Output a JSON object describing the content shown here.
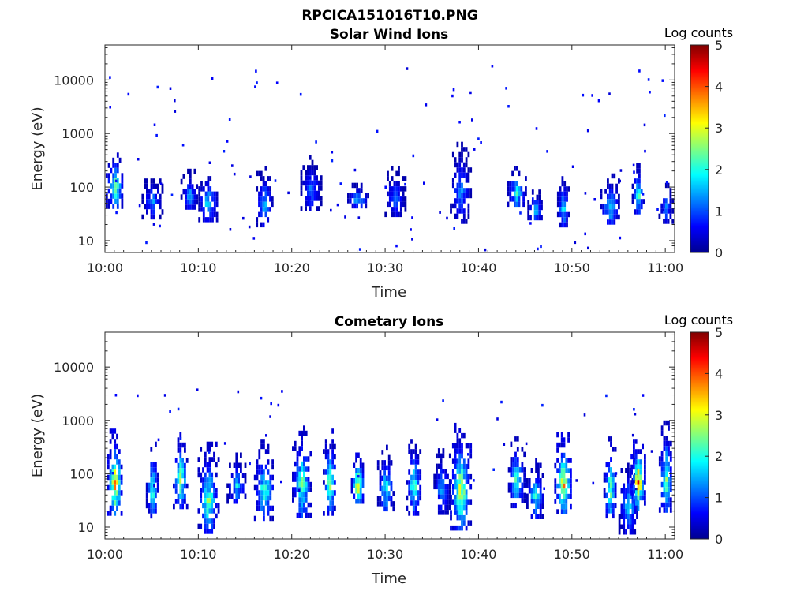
{
  "figure": {
    "title": "RPCICA151016T10.PNG"
  },
  "colors": {
    "colormap": [
      "#00008f",
      "#0000ff",
      "#0080ff",
      "#00ffff",
      "#80ff80",
      "#ffff00",
      "#ff8000",
      "#ff0000",
      "#800000"
    ],
    "axis": "#262626",
    "background": "#ffffff"
  },
  "chart_data": [
    {
      "type": "heatmap",
      "title": "Solar Wind Ions",
      "xlabel": "Time",
      "ylabel": "Energy (eV)",
      "y_scale": "log",
      "ylim": [
        6,
        45000
      ],
      "xlim": [
        "10:00",
        "11:01"
      ],
      "x_ticks": [
        "10:00",
        "10:10",
        "10:20",
        "10:30",
        "10:40",
        "10:50",
        "11:00"
      ],
      "y_ticks": [
        10,
        100,
        1000,
        10000
      ],
      "y_tick_labels": [
        "10",
        "100",
        "1000",
        "10000"
      ],
      "colorbar": {
        "label": "Log counts",
        "range": [
          0,
          5
        ],
        "ticks": [
          "0",
          "1",
          "2",
          "3",
          "4",
          "5"
        ]
      },
      "bursts": [
        {
          "time": "10:01",
          "e_low": 40,
          "e_high": 550,
          "peak": 2.3
        },
        {
          "time": "10:05",
          "e_low": 30,
          "e_high": 180,
          "peak": 1.2
        },
        {
          "time": "10:09",
          "e_low": 40,
          "e_high": 220,
          "peak": 1.3
        },
        {
          "time": "10:11",
          "e_low": 25,
          "e_high": 200,
          "peak": 1.8
        },
        {
          "time": "10:17",
          "e_low": 20,
          "e_high": 250,
          "peak": 1.5
        },
        {
          "time": "10:22",
          "e_low": 40,
          "e_high": 400,
          "peak": 1.2
        },
        {
          "time": "10:27",
          "e_low": 45,
          "e_high": 120,
          "peak": 1.6
        },
        {
          "time": "10:31",
          "e_low": 30,
          "e_high": 250,
          "peak": 1.1
        },
        {
          "time": "10:38",
          "e_low": 25,
          "e_high": 700,
          "peak": 1.3
        },
        {
          "time": "10:44",
          "e_low": 45,
          "e_high": 250,
          "peak": 1.9
        },
        {
          "time": "10:46",
          "e_low": 25,
          "e_high": 90,
          "peak": 1.6
        },
        {
          "time": "10:49",
          "e_low": 20,
          "e_high": 160,
          "peak": 1.8
        },
        {
          "time": "10:54",
          "e_low": 20,
          "e_high": 180,
          "peak": 1.7
        },
        {
          "time": "10:57",
          "e_low": 35,
          "e_high": 280,
          "peak": 2.1
        },
        {
          "time": "11:00",
          "e_low": 25,
          "e_high": 120,
          "peak": 1.2
        }
      ]
    },
    {
      "type": "heatmap",
      "title": "Cometary Ions",
      "xlabel": "Time",
      "ylabel": "Energy (eV)",
      "y_scale": "log",
      "ylim": [
        6,
        45000
      ],
      "xlim": [
        "10:00",
        "11:01"
      ],
      "x_ticks": [
        "10:00",
        "10:10",
        "10:20",
        "10:30",
        "10:40",
        "10:50",
        "11:00"
      ],
      "y_ticks": [
        10,
        100,
        1000,
        10000
      ],
      "y_tick_labels": [
        "10",
        "100",
        "1000",
        "10000"
      ],
      "colorbar": {
        "label": "Log counts",
        "range": [
          0,
          5
        ],
        "ticks": [
          "0",
          "1",
          "2",
          "3",
          "4",
          "5"
        ]
      },
      "bursts": [
        {
          "time": "10:01",
          "e_low": 18,
          "e_high": 700,
          "peak": 3.3
        },
        {
          "time": "10:05",
          "e_low": 18,
          "e_high": 400,
          "peak": 2.1
        },
        {
          "time": "10:08",
          "e_low": 25,
          "e_high": 600,
          "peak": 2.6
        },
        {
          "time": "10:11",
          "e_low": 8,
          "e_high": 400,
          "peak": 2.3
        },
        {
          "time": "10:14",
          "e_low": 30,
          "e_high": 250,
          "peak": 1.6
        },
        {
          "time": "10:17",
          "e_low": 15,
          "e_high": 450,
          "peak": 2.2
        },
        {
          "time": "10:21",
          "e_low": 15,
          "e_high": 800,
          "peak": 2.3
        },
        {
          "time": "10:24",
          "e_low": 20,
          "e_high": 700,
          "peak": 2.4
        },
        {
          "time": "10:27",
          "e_low": 30,
          "e_high": 250,
          "peak": 3.1
        },
        {
          "time": "10:30",
          "e_low": 20,
          "e_high": 350,
          "peak": 1.8
        },
        {
          "time": "10:33",
          "e_low": 20,
          "e_high": 450,
          "peak": 2.2
        },
        {
          "time": "10:36",
          "e_low": 20,
          "e_high": 300,
          "peak": 1.5
        },
        {
          "time": "10:38",
          "e_low": 10,
          "e_high": 900,
          "peak": 2.8
        },
        {
          "time": "10:44",
          "e_low": 25,
          "e_high": 500,
          "peak": 2.1
        },
        {
          "time": "10:46",
          "e_low": 15,
          "e_high": 200,
          "peak": 1.9
        },
        {
          "time": "10:49",
          "e_low": 20,
          "e_high": 600,
          "peak": 3.2
        },
        {
          "time": "10:54",
          "e_low": 15,
          "e_high": 500,
          "peak": 2.5
        },
        {
          "time": "10:56",
          "e_low": 8,
          "e_high": 200,
          "peak": 1.6
        },
        {
          "time": "10:57",
          "e_low": 25,
          "e_high": 450,
          "peak": 3.5
        },
        {
          "time": "11:00",
          "e_low": 20,
          "e_high": 1000,
          "peak": 2.2
        }
      ]
    }
  ]
}
